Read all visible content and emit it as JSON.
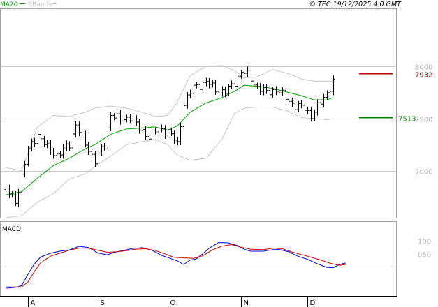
{
  "header": {
    "ma_label": "MA20",
    "bb_label": "BBands",
    "copyright": "© TEC 19/12/2025 4:0 GMT"
  },
  "colors": {
    "price": "#000000",
    "ma": "#00a000",
    "bbands": "#c8c8c8",
    "resistance": "#c00000",
    "support": "#008000",
    "macd": "#0000cc",
    "signal": "#cc0000",
    "grid": "#c8c8c8"
  },
  "chart_data": [
    {
      "type": "line",
      "name": "price",
      "ylim": [
        6550,
        8550
      ],
      "y_ticks": [
        7000,
        7500,
        8000
      ],
      "x_ticks": [
        {
          "label": "A",
          "index": 0
        },
        {
          "label": "S",
          "index": 22
        },
        {
          "label": "O",
          "index": 44
        },
        {
          "label": "N",
          "index": 67
        },
        {
          "label": "D",
          "index": 88
        }
      ],
      "n_bars": 104,
      "series": [
        {
          "kind": "ohlc",
          "anchors": [
            [
              -7,
              6820
            ],
            [
              -4,
              6700
            ],
            [
              0,
              7200
            ],
            [
              3,
              7350
            ],
            [
              6,
              7220
            ],
            [
              9,
              7150
            ],
            [
              13,
              7250
            ],
            [
              15,
              7450
            ],
            [
              18,
              7250
            ],
            [
              21,
              7100
            ],
            [
              24,
              7250
            ],
            [
              26,
              7550
            ],
            [
              29,
              7480
            ],
            [
              32,
              7520
            ],
            [
              35,
              7400
            ],
            [
              38,
              7330
            ],
            [
              41,
              7400
            ],
            [
              44,
              7380
            ],
            [
              47,
              7250
            ],
            [
              49,
              7650
            ],
            [
              52,
              7800
            ],
            [
              56,
              7850
            ],
            [
              59,
              7780
            ],
            [
              62,
              7750
            ],
            [
              65,
              7850
            ],
            [
              67,
              7950
            ],
            [
              69,
              7920
            ],
            [
              72,
              7800
            ],
            [
              75,
              7750
            ],
            [
              78,
              7780
            ],
            [
              81,
              7700
            ],
            [
              84,
              7620
            ],
            [
              87,
              7600
            ],
            [
              89,
              7530
            ],
            [
              92,
              7650
            ],
            [
              95,
              7800
            ],
            [
              96,
              7850
            ]
          ]
        },
        {
          "name": "MA20",
          "anchors": [
            [
              -7,
              6770
            ],
            [
              -2,
              6800
            ],
            [
              3,
              6930
            ],
            [
              8,
              7050
            ],
            [
              13,
              7120
            ],
            [
              18,
              7210
            ],
            [
              21,
              7250
            ],
            [
              26,
              7350
            ],
            [
              31,
              7400
            ],
            [
              36,
              7410
            ],
            [
              40,
              7420
            ],
            [
              44,
              7390
            ],
            [
              47,
              7430
            ],
            [
              51,
              7560
            ],
            [
              56,
              7650
            ],
            [
              61,
              7700
            ],
            [
              66,
              7780
            ],
            [
              68,
              7820
            ],
            [
              72,
              7810
            ],
            [
              77,
              7790
            ],
            [
              82,
              7750
            ],
            [
              86,
              7720
            ],
            [
              90,
              7680
            ],
            [
              94,
              7680
            ],
            [
              96,
              7700
            ]
          ]
        },
        {
          "name": "BBands upper",
          "anchors": [
            [
              -7,
              7030
            ],
            [
              -2,
              7000
            ],
            [
              3,
              7420
            ],
            [
              8,
              7530
            ],
            [
              13,
              7520
            ],
            [
              18,
              7560
            ],
            [
              21,
              7600
            ],
            [
              26,
              7620
            ],
            [
              31,
              7600
            ],
            [
              36,
              7560
            ],
            [
              40,
              7520
            ],
            [
              44,
              7530
            ],
            [
              47,
              7660
            ],
            [
              51,
              7910
            ],
            [
              56,
              8000
            ],
            [
              61,
              8010
            ],
            [
              65,
              7960
            ],
            [
              68,
              7890
            ],
            [
              72,
              7900
            ],
            [
              77,
              7970
            ],
            [
              82,
              7930
            ],
            [
              86,
              7880
            ],
            [
              90,
              7860
            ],
            [
              94,
              7860
            ],
            [
              96,
              7860
            ]
          ]
        },
        {
          "name": "BBands lower",
          "anchors": [
            [
              -7,
              6550
            ],
            [
              -2,
              6570
            ],
            [
              3,
              6700
            ],
            [
              8,
              6780
            ],
            [
              13,
              6920
            ],
            [
              18,
              6970
            ],
            [
              21,
              7040
            ],
            [
              26,
              7140
            ],
            [
              31,
              7250
            ],
            [
              36,
              7280
            ],
            [
              40,
              7300
            ],
            [
              44,
              7250
            ],
            [
              47,
              7150
            ],
            [
              51,
              7100
            ],
            [
              56,
              7120
            ],
            [
              61,
              7300
            ],
            [
              65,
              7550
            ],
            [
              68,
              7600
            ],
            [
              72,
              7610
            ],
            [
              77,
              7610
            ],
            [
              82,
              7570
            ],
            [
              86,
              7510
            ],
            [
              90,
              7500
            ],
            [
              94,
              7490
            ],
            [
              96,
              7500
            ]
          ]
        }
      ],
      "levels": [
        {
          "name": "resistance",
          "value": 7932,
          "label": "7932"
        },
        {
          "name": "support",
          "value": 7513,
          "label": "7513"
        }
      ]
    },
    {
      "type": "line",
      "name": "MACD",
      "title": "MACD",
      "ylim": [
        -115,
        175
      ],
      "y_ticks": [
        100,
        50,
        0
      ],
      "y_tick_labels": [
        "100",
        "050",
        ""
      ],
      "series": [
        {
          "name": "MACD",
          "anchors": [
            [
              -7,
              -85
            ],
            [
              -4,
              -82
            ],
            [
              -2,
              -75
            ],
            [
              0,
              -30
            ],
            [
              2,
              10
            ],
            [
              4,
              37
            ],
            [
              7,
              52
            ],
            [
              10,
              60
            ],
            [
              13,
              65
            ],
            [
              16,
              79
            ],
            [
              19,
              75
            ],
            [
              22,
              53
            ],
            [
              25,
              46
            ],
            [
              27,
              55
            ],
            [
              30,
              63
            ],
            [
              33,
              71
            ],
            [
              36,
              74
            ],
            [
              39,
              64
            ],
            [
              42,
              44
            ],
            [
              45,
              31
            ],
            [
              47,
              22
            ],
            [
              49,
              8
            ],
            [
              51,
              25
            ],
            [
              53,
              30
            ],
            [
              55,
              50
            ],
            [
              57,
              72
            ],
            [
              60,
              94
            ],
            [
              63,
              93
            ],
            [
              66,
              82
            ],
            [
              68,
              68
            ],
            [
              70,
              60
            ],
            [
              74,
              60
            ],
            [
              77,
              66
            ],
            [
              79,
              67
            ],
            [
              82,
              58
            ],
            [
              85,
              40
            ],
            [
              88,
              28
            ],
            [
              91,
              11
            ],
            [
              94,
              -3
            ],
            [
              96,
              -5
            ],
            [
              98,
              8
            ],
            [
              100,
              14
            ]
          ]
        },
        {
          "name": "Signal",
          "anchors": [
            [
              -7,
              -80
            ],
            [
              -2,
              -80
            ],
            [
              0,
              -60
            ],
            [
              2,
              -20
            ],
            [
              4,
              15
            ],
            [
              7,
              40
            ],
            [
              10,
              52
            ],
            [
              13,
              64
            ],
            [
              16,
              72
            ],
            [
              19,
              72
            ],
            [
              22,
              64
            ],
            [
              25,
              56
            ],
            [
              28,
              58
            ],
            [
              31,
              62
            ],
            [
              34,
              68
            ],
            [
              37,
              70
            ],
            [
              40,
              63
            ],
            [
              43,
              50
            ],
            [
              46,
              36
            ],
            [
              49,
              34
            ],
            [
              52,
              32
            ],
            [
              55,
              42
            ],
            [
              58,
              65
            ],
            [
              61,
              80
            ],
            [
              64,
              86
            ],
            [
              67,
              76
            ],
            [
              70,
              68
            ],
            [
              74,
              66
            ],
            [
              77,
              72
            ],
            [
              80,
              70
            ],
            [
              83,
              57
            ],
            [
              86,
              47
            ],
            [
              89,
              37
            ],
            [
              92,
              26
            ],
            [
              95,
              13
            ],
            [
              98,
              5
            ],
            [
              100,
              8
            ]
          ]
        }
      ]
    }
  ]
}
